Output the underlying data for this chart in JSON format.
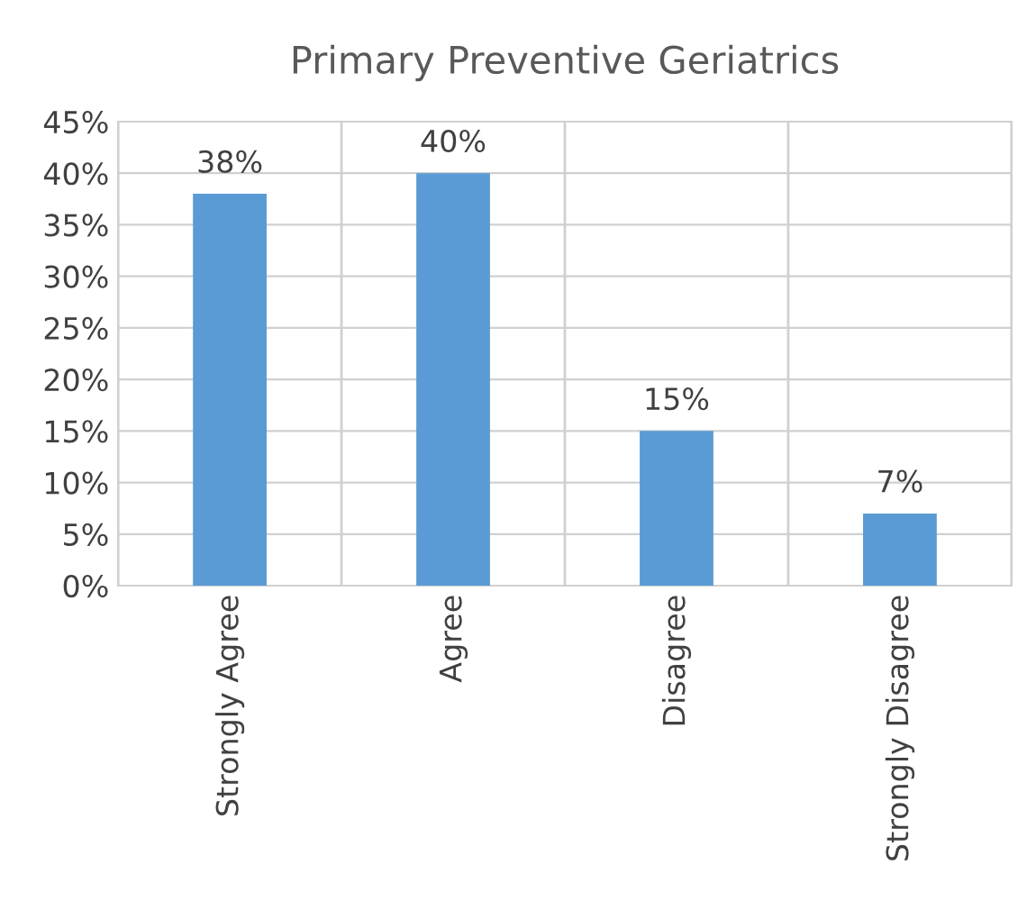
{
  "chart_data": {
    "type": "bar",
    "title": "Primary Preventive Geriatrics",
    "categories": [
      "Strongly Agree",
      "Agree",
      "Disagree",
      "Strongly Disagree"
    ],
    "values": [
      38,
      40,
      15,
      7
    ],
    "value_labels": [
      "38%",
      "40%",
      "15%",
      "7%"
    ],
    "color": "#5b9bd5",
    "ylim": [
      0,
      45
    ],
    "yticks": [
      {
        "value": 0,
        "label": "0%"
      },
      {
        "value": 5,
        "label": "5%"
      },
      {
        "value": 10,
        "label": "10%"
      },
      {
        "value": 15,
        "label": "15%"
      },
      {
        "value": 20,
        "label": "20%"
      },
      {
        "value": 25,
        "label": "25%"
      },
      {
        "value": 30,
        "label": "30%"
      },
      {
        "value": 35,
        "label": "35%"
      },
      {
        "value": 40,
        "label": "40%"
      },
      {
        "value": 45,
        "label": "45%"
      }
    ],
    "grid": true
  }
}
